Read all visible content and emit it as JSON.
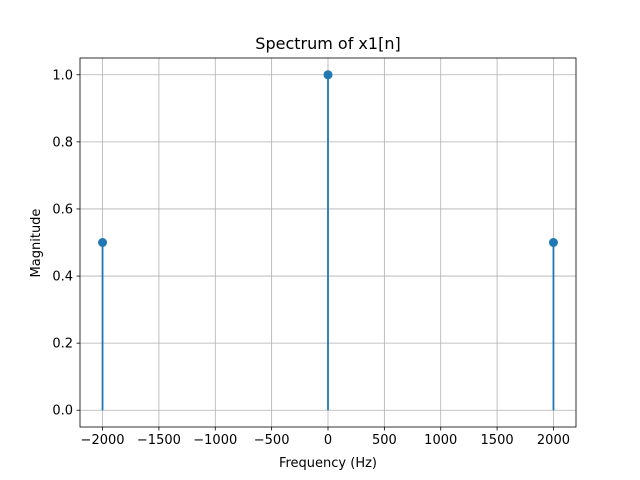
{
  "chart_data": {
    "type": "stem",
    "title": "Spectrum of x1[n]",
    "xlabel": "Frequency (Hz)",
    "ylabel": "Magnitude",
    "xlim": [
      -2200,
      2200
    ],
    "ylim": [
      -0.05,
      1.05
    ],
    "xticks": [
      -2000,
      -1500,
      -1000,
      -500,
      0,
      500,
      1000,
      1500,
      2000
    ],
    "xtick_labels": [
      "−2000",
      "−1500",
      "−1000",
      "−500",
      "0",
      "500",
      "1000",
      "1500",
      "2000"
    ],
    "yticks": [
      0.0,
      0.2,
      0.4,
      0.6,
      0.8,
      1.0
    ],
    "ytick_labels": [
      "0.0",
      "0.2",
      "0.4",
      "0.6",
      "0.8",
      "1.0"
    ],
    "grid": true,
    "series": [
      {
        "color": "#1f77b4",
        "points": [
          {
            "x": -2000,
            "y": 0.5
          },
          {
            "x": 0,
            "y": 1.0
          },
          {
            "x": 2000,
            "y": 0.5
          }
        ]
      }
    ]
  }
}
